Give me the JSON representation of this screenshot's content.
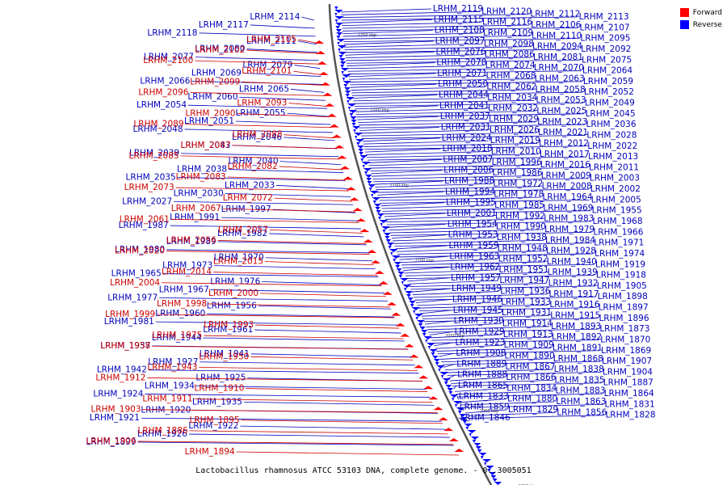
{
  "caption": "Lactobacillus rhamnosus ATCC 53103 DNA, complete genome. - 0..3005051",
  "legend": [
    {
      "label": "Forward",
      "color": "#ff0000"
    },
    {
      "label": "Reverse",
      "color": "#0000ff"
    }
  ],
  "colors": {
    "forward": "#cc0000",
    "reverse": "#0000bb",
    "backbone": "#555555"
  },
  "ticks": [
    "2250 kbp",
    "2200 kbp",
    "2150 kbp",
    "2100 kbp",
    "2050 kbp",
    "2000 kbp",
    "1950 kbp"
  ],
  "forward_labels": [
    "LRHM_2105",
    "LRHM_2102",
    "LRHM_2100",
    "LRHM_2101",
    "LRHM_2099",
    "LRHM_2096",
    "LRHM_2093",
    "LRHM_2090",
    "LRHM_2089",
    "LRHM_2088",
    "LRHM_2087",
    "LRHM_2085",
    "LRHM_2082",
    "LRHM_2083",
    "LRHM_2073",
    "LRHM_2072",
    "LRHM_2067",
    "LRHM_2061",
    "LRHM_2057",
    "LRHM_2056",
    "LRHM_2020",
    "LRHM_2015",
    "LRHM_2014",
    "LRHM_2004",
    "LRHM_2000",
    "LRHM_1998",
    "LRHM_1999",
    "LRHM_1993",
    "LRHM_1975",
    "LRHM_1958",
    "LRHM_1950",
    "LRHM_1943",
    "LRHM_1912",
    "LRHM_1910",
    "LRHM_1911",
    "LRHM_1903",
    "LRHM_1895",
    "LRHM_1886",
    "LRHM_1906",
    "LRHM_1894"
  ],
  "reverse_left_labels": [
    "LRHM_2114",
    "LRHM_2117",
    "LRHM_2118",
    "LRHM_2111",
    "LRHM_2080",
    "LRHM_2077",
    "LRHM_2079",
    "LRHM_2069",
    "LRHM_2066",
    "LRHM_2065",
    "LRHM_2060",
    "LRHM_2054",
    "LRHM_2055",
    "LRHM_2051",
    "LRHM_2048",
    "LRHM_2046",
    "LRHM_2043",
    "LRHM_2039",
    "LRHM_2040",
    "LRHM_2038",
    "LRHM_2035",
    "LRHM_2033",
    "LRHM_2030",
    "LRHM_2027",
    "LRHM_1997",
    "LRHM_1991",
    "LRHM_1987",
    "LRHM_1982",
    "LRHM_1989",
    "LRHM_1980",
    "LRHM_1970",
    "LRHM_1973",
    "LRHM_1965",
    "LRHM_1976",
    "LRHM_1967",
    "LRHM_1977",
    "LRHM_1956",
    "LRHM_1960",
    "LRHM_1981",
    "LRHM_1961",
    "LRHM_1944",
    "LRHM_1937",
    "LRHM_1941",
    "LRHM_1927",
    "LRHM_1942",
    "LRHM_1925",
    "LRHM_1934",
    "LRHM_1924",
    "LRHM_1935",
    "LRHM_1920",
    "LRHM_1921",
    "LRHM_1922",
    "LRHM_1926",
    "LRHM_1899"
  ],
  "reverse_right_labels": [
    "LRHM_2119",
    "LRHM_2120",
    "LRHM_2112",
    "LRHM_2113",
    "LRHM_2115",
    "LRHM_2116",
    "LRHM_2106",
    "LRHM_2107",
    "LRHM_2108",
    "LRHM_2109",
    "LRHM_2110",
    "LRHM_2095",
    "LRHM_2097",
    "LRHM_2098",
    "LRHM_2094",
    "LRHM_2092",
    "LRHM_2076",
    "LRHM_2086",
    "LRHM_2081",
    "LRHM_2075",
    "LRHM_2078",
    "LRHM_2074",
    "LRHM_2070",
    "LRHM_2064",
    "LRHM_2071",
    "LRHM_2068",
    "LRHM_2063",
    "LRHM_2059",
    "LRHM_2050",
    "LRHM_2062",
    "LRHM_2058",
    "LRHM_2052",
    "LRHM_2044",
    "LRHM_2034",
    "LRHM_2053",
    "LRHM_2049",
    "LRHM_2041",
    "LRHM_2032",
    "LRHM_2025",
    "LRHM_2045",
    "LRHM_2037",
    "LRHM_2029",
    "LRHM_2023",
    "LRHM_2036",
    "LRHM_2031",
    "LRHM_2026",
    "LRHM_2021",
    "LRHM_2028",
    "LRHM_2024",
    "LRHM_2019",
    "LRHM_2012",
    "LRHM_2022",
    "LRHM_2018",
    "LRHM_2010",
    "LRHM_2017",
    "LRHM_2013",
    "LRHM_2007",
    "LRHM_1996",
    "LRHM_2016",
    "LRHM_2011",
    "LRHM_2006",
    "LRHM_1986",
    "LRHM_2009",
    "LRHM_2003",
    "LRHM_1988",
    "LRHM_1972",
    "LRHM_2008",
    "LRHM_2002",
    "LRHM_1994",
    "LRHM_1978",
    "LRHM_1964",
    "LRHM_2005",
    "LRHM_1995",
    "LRHM_1985",
    "LRHM_1969",
    "LRHM_1955",
    "LRHM_2001",
    "LRHM_1992",
    "LRHM_1983",
    "LRHM_1968",
    "LRHM_1954",
    "LRHM_1990",
    "LRHM_1979",
    "LRHM_1966",
    "LRHM_1953",
    "LRHM_1938",
    "LRHM_1984",
    "LRHM_1971",
    "LRHM_1959",
    "LRHM_1948",
    "LRHM_1928",
    "LRHM_1974",
    "LRHM_1963",
    "LRHM_1952",
    "LRHM_1940",
    "LRHM_1919",
    "LRHM_1962",
    "LRHM_1951",
    "LRHM_1939",
    "LRHM_1918",
    "LRHM_1957",
    "LRHM_1947",
    "LRHM_1932",
    "LRHM_1905",
    "LRHM_1949",
    "LRHM_1936",
    "LRHM_1917",
    "LRHM_1898",
    "LRHM_1946",
    "LRHM_1933",
    "LRHM_1916",
    "LRHM_1897",
    "LRHM_1945",
    "LRHM_1931",
    "LRHM_1915",
    "LRHM_1896",
    "LRHM_1930",
    "LRHM_1914",
    "LRHM_1893",
    "LRHM_1873",
    "LRHM_1929",
    "LRHM_1913",
    "LRHM_1892",
    "LRHM_1870",
    "LRHM_1923",
    "LRHM_1909",
    "LRHM_1891",
    "LRHM_1869",
    "LRHM_1908",
    "LRHM_1890",
    "LRHM_1868",
    "LRHM_1907",
    "LRHM_1889",
    "LRHM_1867",
    "LRHM_1838",
    "LRHM_1904",
    "LRHM_1888",
    "LRHM_1866",
    "LRHM_1835",
    "LRHM_1887",
    "LRHM_1865",
    "LRHM_1834",
    "LRHM_1883",
    "LRHM_1864",
    "LRHM_1833",
    "LRHM_1880",
    "LRHM_1863",
    "LRHM_1831",
    "LRHM_1859",
    "LRHM_1829",
    "LRHM_1856",
    "LRHM_1828",
    "LRHM_1846"
  ]
}
